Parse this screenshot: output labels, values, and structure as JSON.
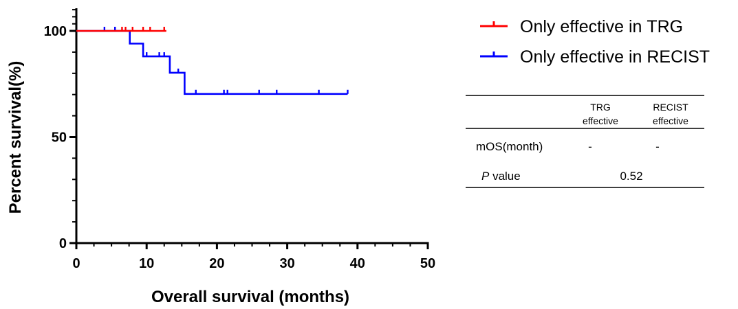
{
  "chart_data": {
    "type": "line",
    "subtype": "kaplan-meier",
    "xlabel": "Overall survival (months)",
    "ylabel": "Percent survival(%)",
    "xlim": [
      0,
      50
    ],
    "ylim": [
      0,
      100
    ],
    "xticks": [
      0,
      10,
      20,
      30,
      40,
      50
    ],
    "yticks": [
      0,
      50,
      100
    ],
    "grid": false,
    "legend_position": "top-right",
    "series": [
      {
        "name": "Only effective in TRG",
        "color": "#ff0000",
        "steps": [
          [
            0,
            100
          ],
          [
            12.8,
            100
          ]
        ],
        "censor": [
          [
            6.5,
            100
          ],
          [
            7.0,
            100
          ],
          [
            8.0,
            100
          ],
          [
            9.5,
            100
          ],
          [
            10.5,
            100
          ],
          [
            12.5,
            100
          ]
        ]
      },
      {
        "name": "Only effective in RECIST",
        "color": "#0000ff",
        "steps": [
          [
            0,
            100
          ],
          [
            7.6,
            100
          ],
          [
            7.6,
            94
          ],
          [
            9.5,
            94
          ],
          [
            9.5,
            88
          ],
          [
            13.3,
            88
          ],
          [
            13.3,
            80.3
          ],
          [
            15.4,
            80.3
          ],
          [
            15.4,
            70.3
          ],
          [
            38.6,
            70.3
          ]
        ],
        "censor": [
          [
            4.0,
            100
          ],
          [
            5.5,
            100
          ],
          [
            10.0,
            88
          ],
          [
            11.8,
            88
          ],
          [
            12.5,
            88
          ],
          [
            14.5,
            80.3
          ],
          [
            17.0,
            70.3
          ],
          [
            21.0,
            70.3
          ],
          [
            21.5,
            70.3
          ],
          [
            26.0,
            70.3
          ],
          [
            28.5,
            70.3
          ],
          [
            34.5,
            70.3
          ],
          [
            38.6,
            70.3
          ]
        ]
      }
    ],
    "table": {
      "columns": [
        "",
        "TRG effective",
        "RECIST effective"
      ],
      "col_headers": [
        {
          "line1": "TRG",
          "line2": "effective"
        },
        {
          "line1": "RECIST",
          "line2": "effective"
        }
      ],
      "rows": [
        {
          "label": "mOS(month)",
          "values": [
            "-",
            "-"
          ]
        },
        {
          "label_italic": "P",
          "label_rest": " value",
          "value": "0.52"
        }
      ]
    }
  }
}
